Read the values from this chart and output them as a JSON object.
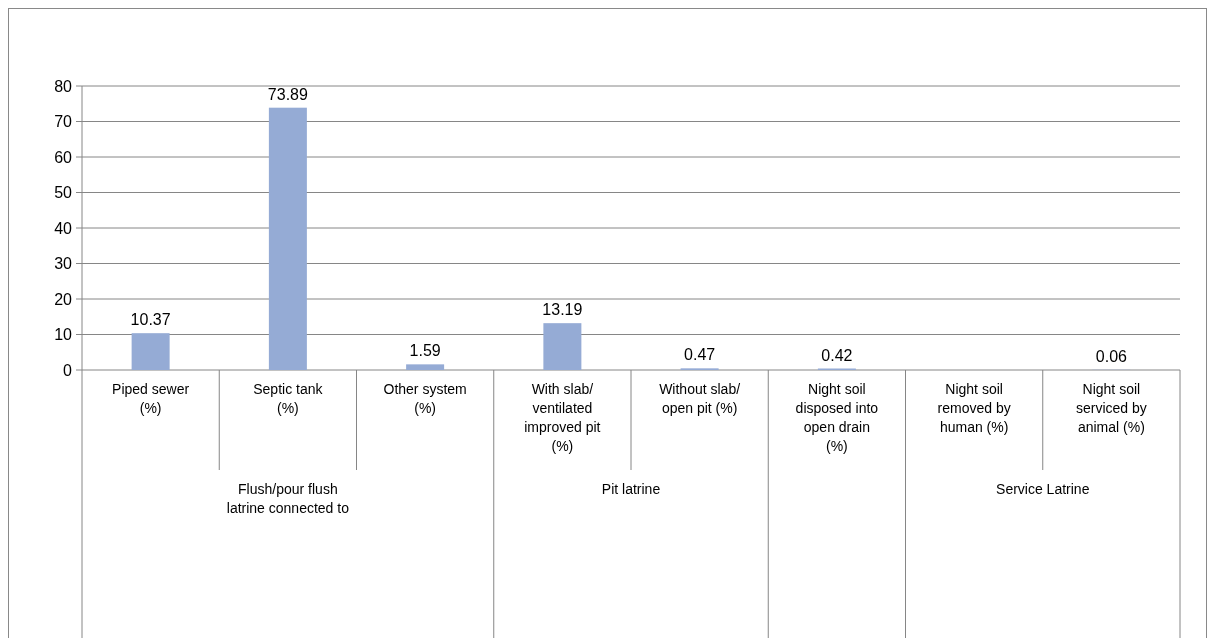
{
  "chart_data": {
    "type": "bar",
    "categories": [
      "Piped sewer (%)",
      "Septic tank (%)",
      "Other system (%)",
      "With slab/ ventilated improved pit (%)",
      "Without slab/ open pit (%)",
      "Night soil disposed into open drain (%)",
      "Night soil removed by human (%)",
      "Night soil serviced by animal (%)"
    ],
    "values": [
      10.37,
      73.89,
      1.59,
      13.19,
      0.47,
      0.42,
      null,
      0.06
    ],
    "color": "#95abd5",
    "ylim": [
      0,
      80
    ],
    "yticks": [
      0,
      10,
      20,
      30,
      40,
      50,
      60,
      70,
      80
    ],
    "grid": "y",
    "data_labels": true,
    "annotations": [
      "Flush/pour flush latrine connected to",
      "Pit latrine",
      "Service Latrine"
    ]
  }
}
